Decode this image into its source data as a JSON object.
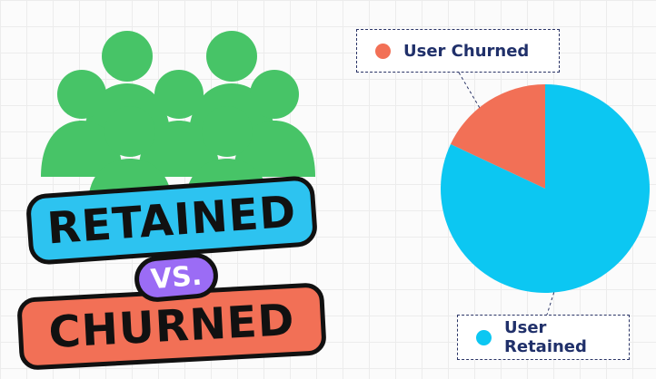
{
  "badges": {
    "retained": "RETAINED",
    "vs": "VS.",
    "churned": "CHURNED"
  },
  "colors": {
    "people": "#47c467",
    "retained": "#0cc7f2",
    "churned": "#f27056"
  },
  "chart_data": {
    "type": "pie",
    "title": "",
    "slices": [
      {
        "label": "User Churned",
        "value": 18,
        "color": "#f27056"
      },
      {
        "label": "User Retained",
        "value": 82,
        "color": "#0cc7f2"
      }
    ],
    "start_angle_deg": 0,
    "legend": "callout labels (top-left and bottom)"
  }
}
